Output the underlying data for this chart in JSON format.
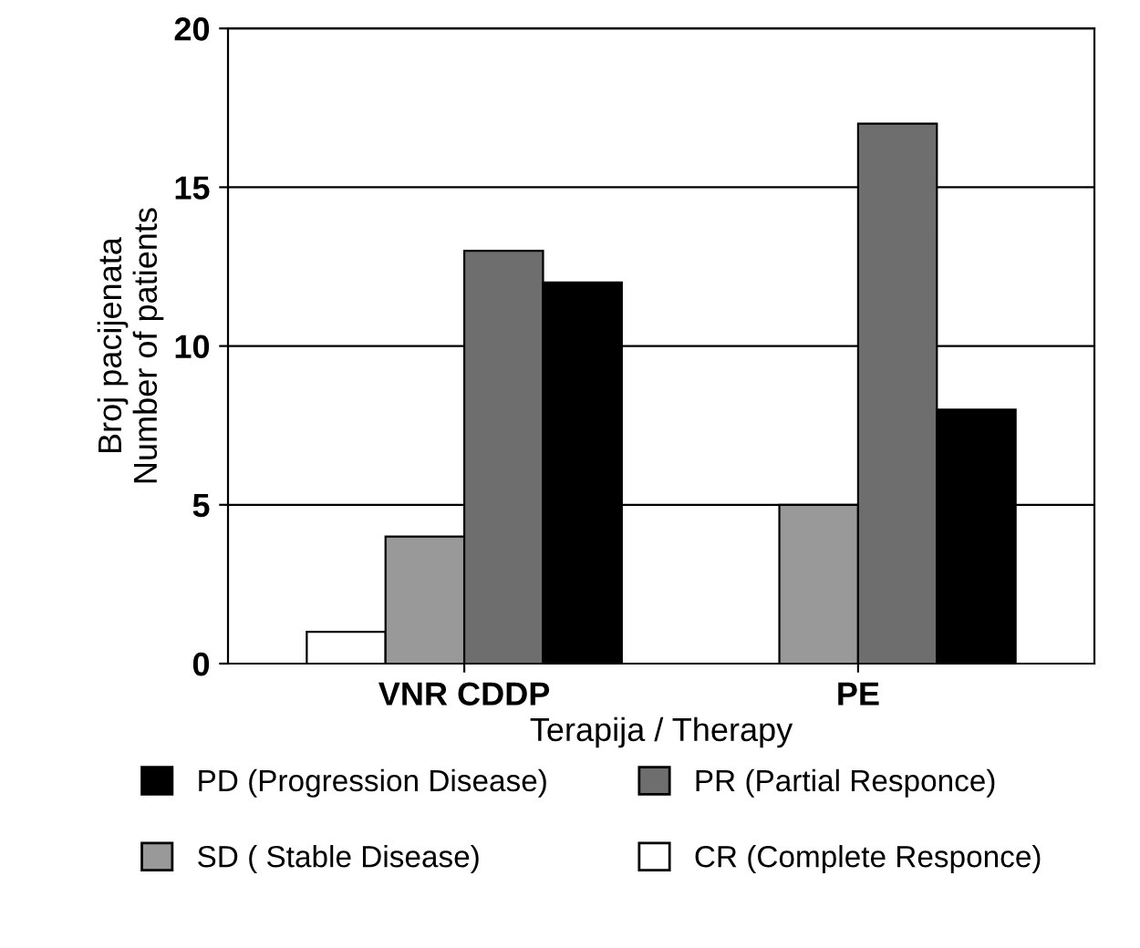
{
  "chart_data": {
    "type": "bar",
    "xlabel": "Terapija / Therapy",
    "ylabel": "Broj pacijenata\nNumber of patients",
    "categories": [
      "VNR CDDP",
      "PE"
    ],
    "series": [
      {
        "name": "CR (Complete Responce)",
        "color": "#ffffff",
        "values": [
          1,
          0
        ]
      },
      {
        "name": "SD ( Stable Disease)",
        "color": "#999999",
        "values": [
          4,
          5
        ]
      },
      {
        "name": "PR (Partial Responce)",
        "color": "#6e6e6e",
        "values": [
          13,
          17
        ]
      },
      {
        "name": "PD (Progression Disease)",
        "color": "#000000",
        "values": [
          12,
          8
        ]
      }
    ],
    "ylim": [
      0,
      20
    ],
    "yticks": [
      0,
      5,
      10,
      15,
      20
    ],
    "grid": "y",
    "legend": "bottom"
  }
}
